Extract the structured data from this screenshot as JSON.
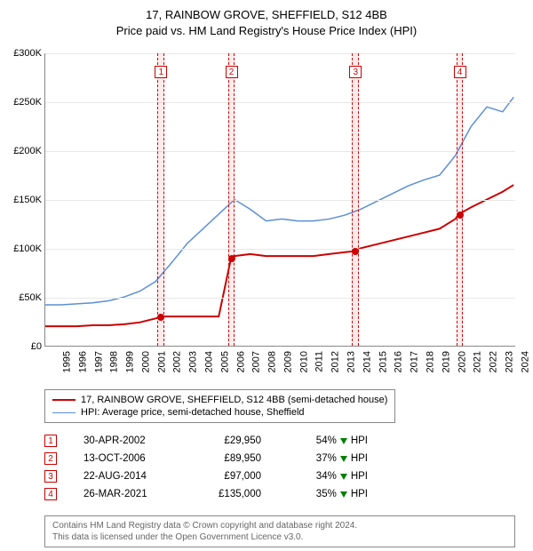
{
  "title_line1": "17, RAINBOW GROVE, SHEFFIELD, S12 4BB",
  "title_line2": "Price paid vs. HM Land Registry's House Price Index (HPI)",
  "chart": {
    "type": "line",
    "x_start": 1995,
    "x_end": 2024.8,
    "years": [
      1995,
      1996,
      1997,
      1998,
      1999,
      2000,
      2001,
      2002,
      2003,
      2004,
      2005,
      2006,
      2007,
      2008,
      2009,
      2010,
      2011,
      2012,
      2013,
      2014,
      2015,
      2016,
      2017,
      2018,
      2019,
      2020,
      2021,
      2022,
      2023,
      2024
    ],
    "y_max": 300,
    "y_step": 50,
    "y_format_prefix": "£",
    "y_format_suffix": "K",
    "grid_color": "#e8e8e8",
    "axis_color": "#888888",
    "background_color": "#ffffff",
    "series": [
      {
        "name": "price_paid",
        "color": "#cc0000",
        "width": 2,
        "points": [
          [
            1995,
            20
          ],
          [
            1996,
            20
          ],
          [
            1997,
            20
          ],
          [
            1998,
            21
          ],
          [
            1999,
            21
          ],
          [
            2000,
            22
          ],
          [
            2001,
            24
          ],
          [
            2002,
            28
          ],
          [
            2002.33,
            30
          ],
          [
            2003,
            30
          ],
          [
            2004,
            30
          ],
          [
            2005,
            30
          ],
          [
            2006,
            30
          ],
          [
            2006.78,
            90
          ],
          [
            2007,
            92
          ],
          [
            2008,
            94
          ],
          [
            2009,
            92
          ],
          [
            2010,
            92
          ],
          [
            2011,
            92
          ],
          [
            2012,
            92
          ],
          [
            2013,
            94
          ],
          [
            2014,
            96
          ],
          [
            2014.64,
            97
          ],
          [
            2015,
            100
          ],
          [
            2016,
            104
          ],
          [
            2017,
            108
          ],
          [
            2018,
            112
          ],
          [
            2019,
            116
          ],
          [
            2020,
            120
          ],
          [
            2021,
            130
          ],
          [
            2021.23,
            135
          ],
          [
            2022,
            142
          ],
          [
            2023,
            150
          ],
          [
            2024,
            158
          ],
          [
            2024.7,
            165
          ]
        ]
      },
      {
        "name": "hpi",
        "color": "#5b8fd6",
        "width": 1.5,
        "points": [
          [
            1995,
            42
          ],
          [
            1996,
            42
          ],
          [
            1997,
            43
          ],
          [
            1998,
            44
          ],
          [
            1999,
            46
          ],
          [
            2000,
            50
          ],
          [
            2001,
            56
          ],
          [
            2002,
            66
          ],
          [
            2003,
            85
          ],
          [
            2004,
            105
          ],
          [
            2005,
            120
          ],
          [
            2006,
            135
          ],
          [
            2007,
            150
          ],
          [
            2008,
            140
          ],
          [
            2009,
            128
          ],
          [
            2010,
            130
          ],
          [
            2011,
            128
          ],
          [
            2012,
            128
          ],
          [
            2013,
            130
          ],
          [
            2014,
            134
          ],
          [
            2015,
            140
          ],
          [
            2016,
            148
          ],
          [
            2017,
            156
          ],
          [
            2018,
            164
          ],
          [
            2019,
            170
          ],
          [
            2020,
            175
          ],
          [
            2021,
            195
          ],
          [
            2022,
            225
          ],
          [
            2023,
            245
          ],
          [
            2024,
            240
          ],
          [
            2024.7,
            255
          ]
        ]
      }
    ],
    "events": [
      {
        "n": "1",
        "year": 2002.33,
        "price_val": 30
      },
      {
        "n": "2",
        "year": 2006.78,
        "price_val": 90
      },
      {
        "n": "3",
        "year": 2014.64,
        "price_val": 97
      },
      {
        "n": "4",
        "year": 2021.23,
        "price_val": 135
      }
    ],
    "band_half_width": 0.22
  },
  "legend": {
    "items": [
      {
        "label": "17, RAINBOW GROVE, SHEFFIELD, S12 4BB (semi-detached house)",
        "color": "#cc0000",
        "thickness": 2
      },
      {
        "label": "HPI: Average price, semi-detached house, Sheffield",
        "color": "#5b8fd6",
        "thickness": 1.5
      }
    ]
  },
  "events_table": [
    {
      "n": "1",
      "date": "30-APR-2002",
      "price": "£29,950",
      "pct": "54%",
      "suffix": "HPI"
    },
    {
      "n": "2",
      "date": "13-OCT-2006",
      "price": "£89,950",
      "pct": "37%",
      "suffix": "HPI"
    },
    {
      "n": "3",
      "date": "22-AUG-2014",
      "price": "£97,000",
      "pct": "34%",
      "suffix": "HPI"
    },
    {
      "n": "4",
      "date": "26-MAR-2021",
      "price": "£135,000",
      "pct": "35%",
      "suffix": "HPI"
    }
  ],
  "footer": {
    "line1": "Contains HM Land Registry data © Crown copyright and database right 2024.",
    "line2": "This data is licensed under the Open Government Licence v3.0."
  }
}
